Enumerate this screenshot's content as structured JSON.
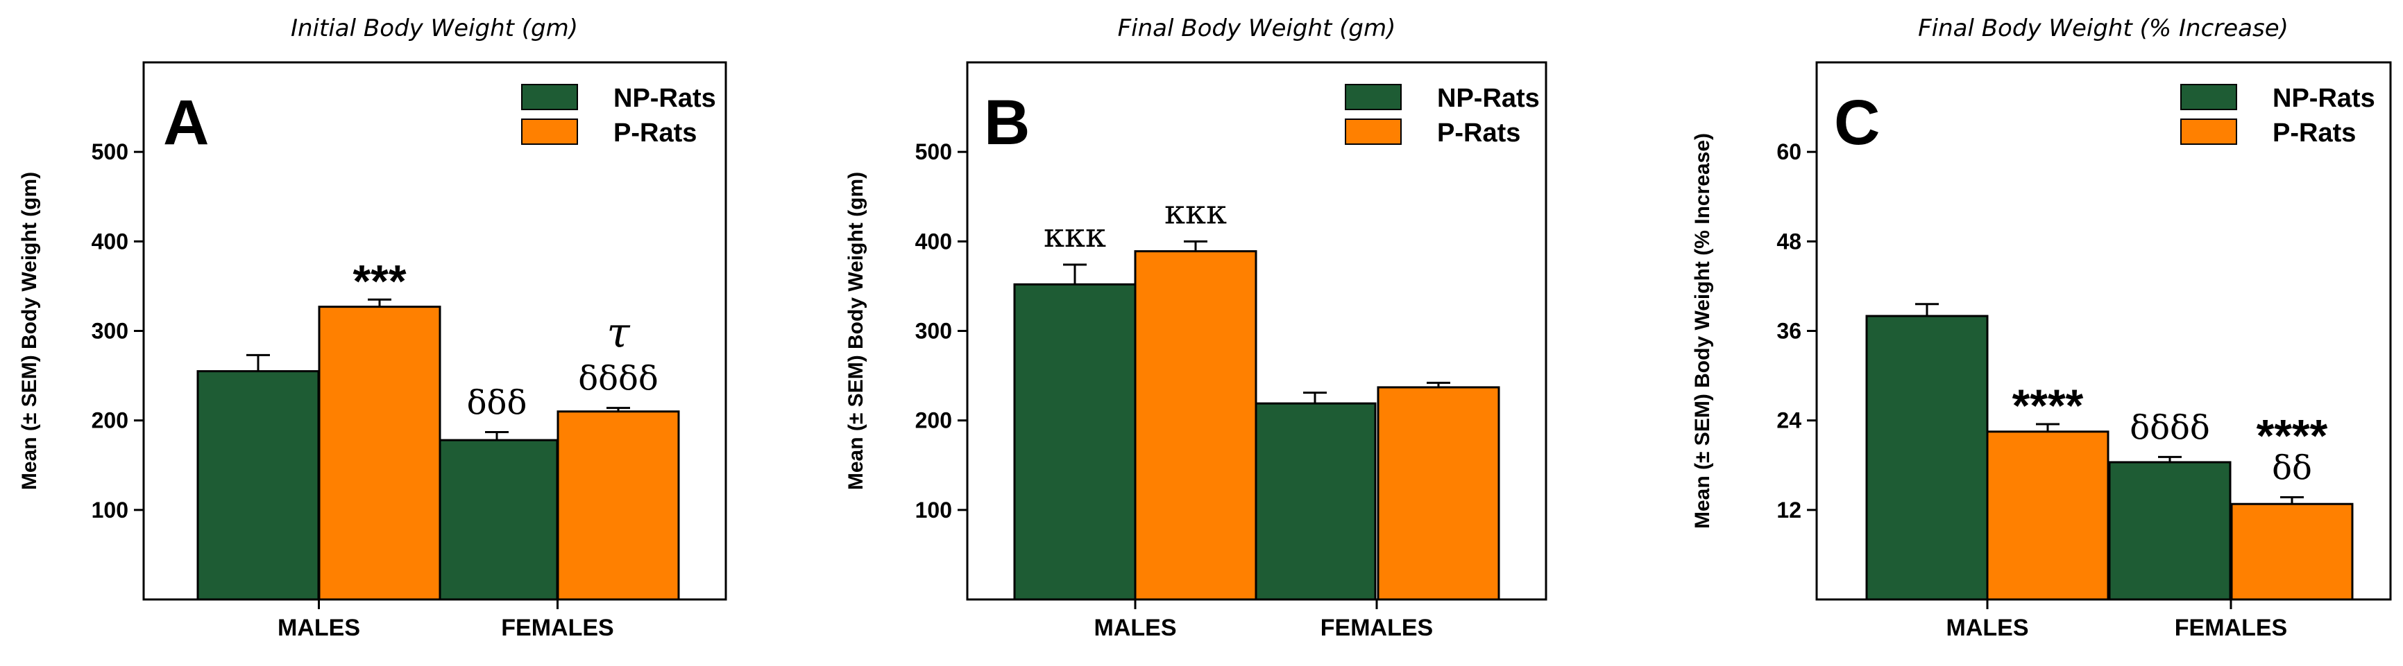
{
  "colors": {
    "np": "#1e5c34",
    "p": "#ff8000",
    "axis": "#000000"
  },
  "chart_data": [
    {
      "type": "bar",
      "panel": "A",
      "title": "Initial Body Weight (gm)",
      "ylabel": "Mean (± SEM) Body Weight (gm)",
      "ylim": [
        0,
        600
      ],
      "yticks": [
        100,
        200,
        300,
        400,
        500
      ],
      "categories": [
        "MALES",
        "FEMALES"
      ],
      "series": [
        {
          "name": "NP-Rats",
          "values": [
            255,
            178
          ],
          "errors": [
            18,
            9
          ]
        },
        {
          "name": "P-Rats",
          "values": [
            327,
            210
          ],
          "errors": [
            8,
            4
          ]
        }
      ],
      "annotations": [
        {
          "category": 0,
          "series": 1,
          "lines": [
            "***"
          ]
        },
        {
          "category": 1,
          "series": 0,
          "lines": [
            "δδδ"
          ]
        },
        {
          "category": 1,
          "series": 1,
          "lines": [
            "τ",
            "δδδδ"
          ]
        }
      ]
    },
    {
      "type": "bar",
      "panel": "B",
      "title": "Final Body Weight (gm)",
      "ylabel": "Mean (± SEM) Body Weight (gm)",
      "ylim": [
        0,
        600
      ],
      "yticks": [
        100,
        200,
        300,
        400,
        500
      ],
      "categories": [
        "MALES",
        "FEMALES"
      ],
      "series": [
        {
          "name": "NP-Rats",
          "values": [
            352,
            219
          ],
          "errors": [
            22,
            12
          ]
        },
        {
          "name": "P-Rats",
          "values": [
            389,
            237
          ],
          "errors": [
            11,
            5
          ]
        }
      ],
      "annotations": [
        {
          "category": 0,
          "series": 0,
          "lines": [
            "κκκ"
          ]
        },
        {
          "category": 0,
          "series": 1,
          "lines": [
            "κκκ"
          ]
        }
      ]
    },
    {
      "type": "bar",
      "panel": "C",
      "title": "Final Body Weight (% Increase)",
      "ylabel": "Mean (± SEM) Body Weight (% Increase)",
      "ylim": [
        0,
        72
      ],
      "yticks": [
        12,
        24,
        36,
        48,
        60
      ],
      "categories": [
        "MALES",
        "FEMALES"
      ],
      "series": [
        {
          "name": "NP-Rats",
          "values": [
            38,
            18.4
          ],
          "errors": [
            1.6,
            0.7
          ]
        },
        {
          "name": "P-Rats",
          "values": [
            22.5,
            12.8
          ],
          "errors": [
            1.0,
            0.9
          ]
        }
      ],
      "annotations": [
        {
          "category": 0,
          "series": 1,
          "lines": [
            "****"
          ]
        },
        {
          "category": 1,
          "series": 0,
          "lines": [
            "δδδδ"
          ]
        },
        {
          "category": 1,
          "series": 1,
          "lines": [
            "****",
            "δδ"
          ]
        }
      ]
    }
  ]
}
